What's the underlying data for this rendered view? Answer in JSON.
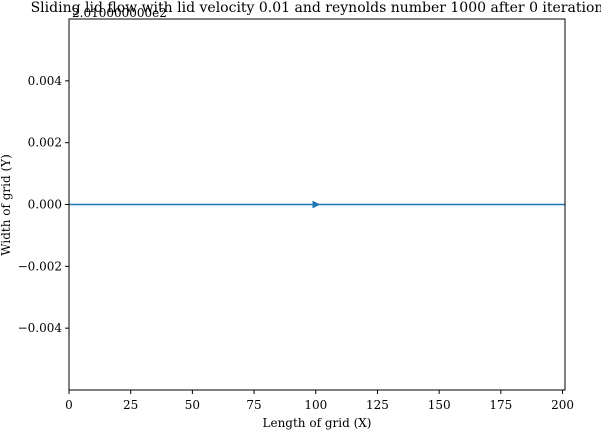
{
  "chart_data": {
    "type": "line",
    "title": "Sliding lid flow with lid velocity 0.01 and reynolds number 1000 after 0 iteration",
    "offset_text": "2.010000000e2",
    "xlabel": "Length of grid (X)",
    "ylabel": "Width of grid (Y)",
    "xlim": [
      0,
      201
    ],
    "ylim": [
      -0.006,
      0.006
    ],
    "xticks": [
      0,
      25,
      50,
      75,
      100,
      125,
      150,
      175,
      200
    ],
    "yticks": [
      -0.004,
      -0.002,
      0.0,
      0.002,
      0.004
    ],
    "ytick_labels": [
      "−0.004",
      "−0.002",
      "0.000",
      "0.002",
      "0.004"
    ],
    "grid": false,
    "series": [
      {
        "color": "#1f77b4",
        "x": [
          0,
          201
        ],
        "y": [
          0,
          0
        ],
        "arrow_at_x": 100
      }
    ]
  }
}
